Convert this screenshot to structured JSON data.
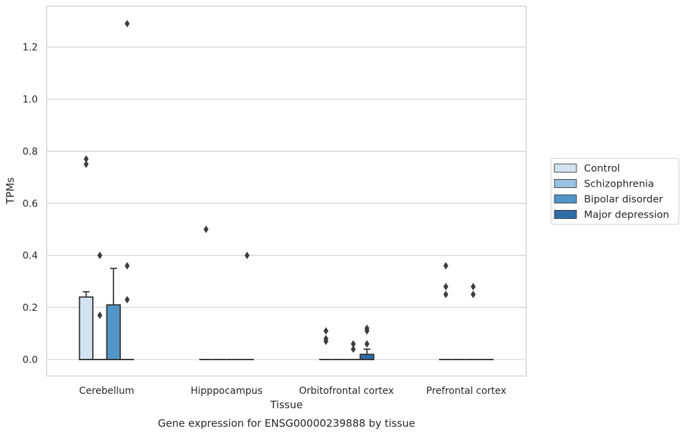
{
  "chart_data": {
    "type": "box",
    "title": "",
    "caption": "Gene expression for ENSG00000239888 by tissue",
    "xlabel": "Tissue",
    "ylabel": "TPMs",
    "ylim": [
      -0.065,
      1.36
    ],
    "yticks": [
      0.0,
      0.2,
      0.4,
      0.6,
      0.8,
      1.0,
      1.2
    ],
    "ytick_labels": [
      "0.0",
      "0.2",
      "0.4",
      "0.6",
      "0.8",
      "1.0",
      "1.2"
    ],
    "grid": "horizontal",
    "legend_position": "right",
    "categories": [
      "Cerebellum",
      "Hipppocampus",
      "Orbitofrontal cortex",
      "Prefrontal cortex"
    ],
    "series": [
      {
        "name": "Control",
        "color": "#d3e3f1",
        "boxes": [
          {
            "q1": 0.0,
            "median": 0.0,
            "q3": 0.24,
            "whisker_low": 0.0,
            "whisker_high": 0.26,
            "outliers": [
              0.75,
              0.77
            ]
          },
          {
            "q1": 0.0,
            "median": 0.0,
            "q3": 0.0,
            "whisker_low": 0.0,
            "whisker_high": 0.0,
            "outliers": [
              0.5
            ]
          },
          {
            "q1": 0.0,
            "median": 0.0,
            "q3": 0.0,
            "whisker_low": 0.0,
            "whisker_high": 0.0,
            "outliers": [
              0.07,
              0.08,
              0.11
            ]
          },
          {
            "q1": 0.0,
            "median": 0.0,
            "q3": 0.0,
            "whisker_low": 0.0,
            "whisker_high": 0.0,
            "outliers": [
              0.25,
              0.28,
              0.36
            ]
          }
        ]
      },
      {
        "name": "Schizophrenia",
        "color": "#9ac3df",
        "boxes": [
          {
            "q1": 0.0,
            "median": 0.0,
            "q3": 0.0,
            "whisker_low": 0.0,
            "whisker_high": 0.0,
            "outliers": [
              0.17,
              0.4
            ]
          },
          {
            "q1": 0.0,
            "median": 0.0,
            "q3": 0.0,
            "whisker_low": 0.0,
            "whisker_high": 0.0,
            "outliers": []
          },
          {
            "q1": 0.0,
            "median": 0.0,
            "q3": 0.0,
            "whisker_low": 0.0,
            "whisker_high": 0.0,
            "outliers": []
          },
          {
            "q1": 0.0,
            "median": 0.0,
            "q3": 0.0,
            "whisker_low": 0.0,
            "whisker_high": 0.0,
            "outliers": []
          }
        ]
      },
      {
        "name": "Bipolar disorder",
        "color": "#5196c6",
        "boxes": [
          {
            "q1": 0.0,
            "median": 0.0,
            "q3": 0.21,
            "whisker_low": 0.0,
            "whisker_high": 0.35,
            "outliers": []
          },
          {
            "q1": 0.0,
            "median": 0.0,
            "q3": 0.0,
            "whisker_low": 0.0,
            "whisker_high": 0.0,
            "outliers": []
          },
          {
            "q1": 0.0,
            "median": 0.0,
            "q3": 0.0,
            "whisker_low": 0.0,
            "whisker_high": 0.0,
            "outliers": [
              0.04,
              0.06
            ]
          },
          {
            "q1": 0.0,
            "median": 0.0,
            "q3": 0.0,
            "whisker_low": 0.0,
            "whisker_high": 0.0,
            "outliers": [
              0.25,
              0.28
            ]
          }
        ]
      },
      {
        "name": "Major depression",
        "color": "#2d6ca6",
        "boxes": [
          {
            "q1": 0.0,
            "median": 0.0,
            "q3": 0.0,
            "whisker_low": 0.0,
            "whisker_high": 0.0,
            "outliers": [
              0.23,
              0.36,
              1.29
            ]
          },
          {
            "q1": 0.0,
            "median": 0.0,
            "q3": 0.0,
            "whisker_low": 0.0,
            "whisker_high": 0.0,
            "outliers": [
              0.4
            ]
          },
          {
            "q1": 0.0,
            "median": 0.0,
            "q3": 0.02,
            "whisker_low": 0.0,
            "whisker_high": 0.04,
            "outliers": [
              0.06,
              0.11,
              0.12
            ]
          },
          {
            "q1": 0.0,
            "median": 0.0,
            "q3": 0.0,
            "whisker_low": 0.0,
            "whisker_high": 0.0,
            "outliers": []
          }
        ]
      }
    ]
  },
  "colors": {
    "box_edge": "#333333",
    "grid": "#cccccc",
    "frame": "#cccccc",
    "text": "#262626"
  }
}
